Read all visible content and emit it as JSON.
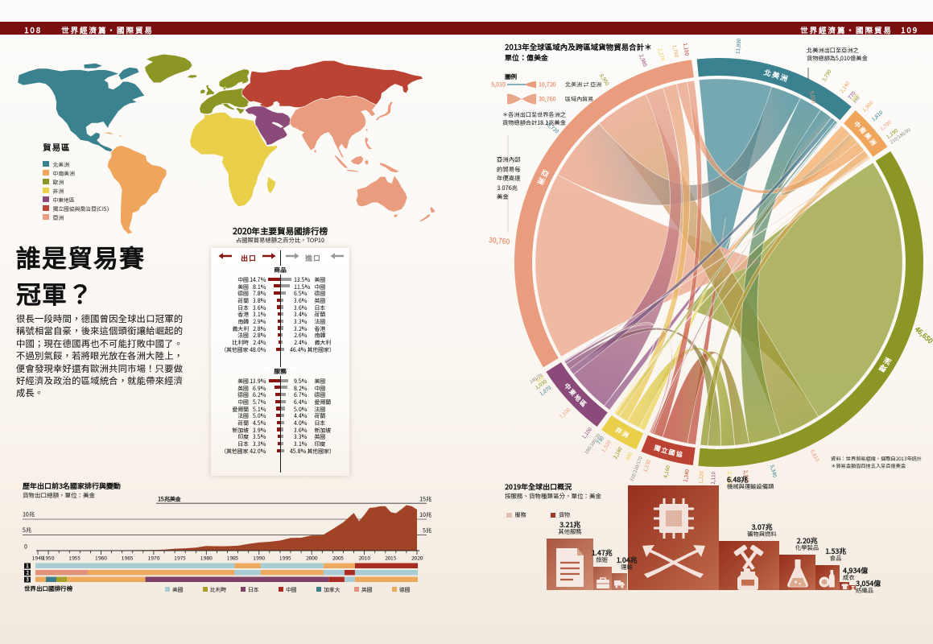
{
  "page": {
    "left_page_number": "108",
    "right_page_number": "109",
    "chapter": "世界經濟篇·國際貿易",
    "background": "#FBF7F2",
    "header_color": "#7A0E10"
  },
  "map": {
    "legend_title": "貿易區",
    "regions": [
      {
        "key": "NA",
        "label": "北美洲",
        "color": "#3A8290"
      },
      {
        "key": "SCA",
        "label": "中南美洲",
        "color": "#F0A55C"
      },
      {
        "key": "EU",
        "label": "歐洲",
        "color": "#8C9624"
      },
      {
        "key": "AF",
        "label": "非洲",
        "color": "#E9CF4A"
      },
      {
        "key": "ME",
        "label": "中東地區",
        "color": "#8C4A7B"
      },
      {
        "key": "CIS",
        "label": "獨立國協與喬治亞(CIS)",
        "color": "#BB4333"
      },
      {
        "key": "AS",
        "label": "亞洲",
        "color": "#E99C7E"
      }
    ]
  },
  "headline": {
    "line1": "誰是貿易賽",
    "line2": "冠軍？",
    "body": "很長一段時間，德國曾因全球出口冠軍的稱號相當自豪，後來這個頭銜讓給崛起的中國；現在德國再也不可能打敗中國了。不過別氣餒，若將眼光放在各洲大陸上，便會發現幸好還有歐洲共同市場！只要做好經濟及政治的區域統合，就能帶來經濟成長。"
  },
  "ranking_table": {
    "title": "2020年主要貿易國排行榜",
    "subtitle": "占國際貿易總額之百分比，TOP10",
    "export_header": "出口",
    "import_header": "進口",
    "sections": [
      {
        "label": "商品",
        "rows": [
          {
            "exp_country": "中國",
            "exp_pct": "14.7%",
            "exp_val": 14.7,
            "imp_val": 13.5,
            "imp_pct": "13.5%",
            "imp_country": "美國"
          },
          {
            "exp_country": "美國",
            "exp_pct": "8.1%",
            "exp_val": 8.1,
            "imp_val": 11.5,
            "imp_pct": "11.5%",
            "imp_country": "中國"
          },
          {
            "exp_country": "德國",
            "exp_pct": "7.8%",
            "exp_val": 7.8,
            "imp_val": 6.5,
            "imp_pct": "6.5%",
            "imp_country": "德國"
          },
          {
            "exp_country": "荷蘭",
            "exp_pct": "3.8%",
            "exp_val": 3.8,
            "imp_val": 3.6,
            "imp_pct": "3.6%",
            "imp_country": "英國"
          },
          {
            "exp_country": "日本",
            "exp_pct": "3.6%",
            "exp_val": 3.6,
            "imp_val": 3.6,
            "imp_pct": "3.6%",
            "imp_country": "日本"
          },
          {
            "exp_country": "香港",
            "exp_pct": "3.1%",
            "exp_val": 3.1,
            "imp_val": 3.4,
            "imp_pct": "3.4%",
            "imp_country": "荷蘭"
          },
          {
            "exp_country": "南韓",
            "exp_pct": "2.9%",
            "exp_val": 2.9,
            "imp_val": 3.3,
            "imp_pct": "3.3%",
            "imp_country": "法國"
          },
          {
            "exp_country": "義大利",
            "exp_pct": "2.8%",
            "exp_val": 2.8,
            "imp_val": 3.2,
            "imp_pct": "3.2%",
            "imp_country": "香港"
          },
          {
            "exp_country": "法國",
            "exp_pct": "2.8%",
            "exp_val": 2.8,
            "imp_val": 2.6,
            "imp_pct": "2.6%",
            "imp_country": "南韓"
          },
          {
            "exp_country": "比利時",
            "exp_pct": "2.4%",
            "exp_val": 2.4,
            "imp_val": 2.4,
            "imp_pct": "2.4%",
            "imp_country": "義大利"
          }
        ],
        "others_exp": "（其他國家 48.0%",
        "others_exp_val": 4.8,
        "others_imp_val": 4.6,
        "others_imp": "46.4% 其他國家）"
      },
      {
        "label": "服務",
        "rows": [
          {
            "exp_country": "美國",
            "exp_pct": "13.9%",
            "exp_val": 13.9,
            "imp_val": 9.5,
            "imp_pct": "9.5%",
            "imp_country": "美國"
          },
          {
            "exp_country": "英國",
            "exp_pct": "6.9%",
            "exp_val": 6.9,
            "imp_val": 8.2,
            "imp_pct": "8.2%",
            "imp_country": "中國"
          },
          {
            "exp_country": "德國",
            "exp_pct": "6.2%",
            "exp_val": 6.2,
            "imp_val": 6.7,
            "imp_pct": "6.7%",
            "imp_country": "德國"
          },
          {
            "exp_country": "中國",
            "exp_pct": "5.7%",
            "exp_val": 5.7,
            "imp_val": 6.4,
            "imp_pct": "6.4%",
            "imp_country": "愛爾蘭"
          },
          {
            "exp_country": "愛爾蘭",
            "exp_pct": "5.1%",
            "exp_val": 5.1,
            "imp_val": 5.0,
            "imp_pct": "5.0%",
            "imp_country": "法國"
          },
          {
            "exp_country": "法國",
            "exp_pct": "5.0%",
            "exp_val": 5.0,
            "imp_val": 4.4,
            "imp_pct": "4.4%",
            "imp_country": "荷蘭"
          },
          {
            "exp_country": "荷蘭",
            "exp_pct": "4.5%",
            "exp_val": 4.5,
            "imp_val": 4.0,
            "imp_pct": "4.0%",
            "imp_country": "日本"
          },
          {
            "exp_country": "新加坡",
            "exp_pct": "3.9%",
            "exp_val": 3.9,
            "imp_val": 3.6,
            "imp_pct": "3.6%",
            "imp_country": "新加坡"
          },
          {
            "exp_country": "印度",
            "exp_pct": "3.5%",
            "exp_val": 3.5,
            "imp_val": 3.3,
            "imp_pct": "3.3%",
            "imp_country": "英國"
          },
          {
            "exp_country": "日本",
            "exp_pct": "3.3%",
            "exp_val": 3.3,
            "imp_val": 3.1,
            "imp_pct": "3.1%",
            "imp_country": "印度"
          }
        ],
        "others_exp": "（其他國家 42.0%",
        "others_exp_val": 4.2,
        "others_imp_val": 4.6,
        "others_imp": "45.8% 其他國家）"
      }
    ]
  },
  "chord": {
    "title": "2013年全球區域內及跨區域貨物貿易合計＊",
    "unit": "單位：億美金",
    "legend_title": "圖例",
    "legend_flow_left": "5,010",
    "legend_flow_right": "10,720",
    "legend_flow_label": "北美洲 ⇄ 亞洲",
    "legend_intra_value": "30,760",
    "legend_intra_label": "區域內貿易",
    "note_line1": "＊各洲出口至世界各洲之",
    "note_line2": "貨物總額合計18.1兆美金",
    "asia_note_lines": [
      "亞洲內部",
      "的貿易每",
      "年便高達",
      "3.076兆",
      "美金"
    ],
    "na_annotation_line1": "北美洲出口至亞洲之",
    "na_annotation_line2": "貨物總額為5,010億美金",
    "source_line1": "資料：世界貿易組織，擷取自2013年統計",
    "source_line2": "＊貿易金額皆四捨五入至百億美金",
    "arc_labels": {
      "NA": "北美洲",
      "SCA": "中南美洲",
      "EU": "歐洲",
      "CIS": "獨立國協",
      "AF": "非洲",
      "ME": "中東地區",
      "AS": "亞洲"
    },
    "region_order": [
      "NA",
      "SCA",
      "EU",
      "CIS",
      "AF",
      "ME",
      "AS"
    ],
    "flows_unit": "億美金",
    "flows": {
      "NA": {
        "NA": 11890,
        "SCA": 2140,
        "EU": 3790,
        "CIS": 160,
        "AF": 390,
        "ME": 770,
        "AS": 5010
      },
      "SCA": {
        "NA": 1810,
        "SCA": 1900,
        "EU": 1190,
        "CIS": 90,
        "AF": 210,
        "ME": 180,
        "AS": 1700
      },
      "EU": {
        "NA": 5340,
        "SCA": 1220,
        "EU": 46650,
        "CIS": 2340,
        "AF": 2220,
        "ME": 2110,
        "AS": 6810
      },
      "CIS": {
        "NA": 310,
        "SCA": 90,
        "EU": 4160,
        "CIS": 1340,
        "AF": 170,
        "ME": 210,
        "AS": 1530
      },
      "AF": {
        "NA": 730,
        "SCA": 190,
        "EU": 2180,
        "CIS": 20,
        "AF": 980,
        "ME": 180,
        "AS": 1520
      },
      "ME": {
        "NA": 1070,
        "SCA": 140,
        "EU": 1030,
        "CIS": 70,
        "AF": 430,
        "ME": 1100,
        "AS": 7100
      },
      "AS": {
        "NA": 10720,
        "SCA": 1760,
        "EU": 8950,
        "CIS": 1180,
        "AF": 2270,
        "ME": 2980,
        "AS": 30760
      }
    }
  },
  "area_chart": {
    "title": "歷年出口前3名國家排行與變動",
    "subtitle": "貨物出口總額，單位：美金",
    "top_gridline_label": "15兆美金",
    "left_labels": [
      "10兆",
      "5兆",
      "0"
    ],
    "right_labels": [
      "15兆",
      "10兆",
      "5兆"
    ],
    "x_labels": [
      1948,
      1950,
      1955,
      1960,
      1965,
      1970,
      1975,
      1980,
      1985,
      1990,
      1995,
      2000,
      2005,
      2010,
      2015,
      2020
    ],
    "chart_data": {
      "type": "area",
      "ylabel": "兆美金",
      "ylim": [
        0,
        15
      ],
      "fill_color": "#A04327",
      "x": [
        1948,
        1950,
        1952,
        1955,
        1958,
        1960,
        1962,
        1964,
        1966,
        1968,
        1970,
        1972,
        1974,
        1976,
        1978,
        1980,
        1982,
        1984,
        1986,
        1988,
        1990,
        1992,
        1994,
        1996,
        1998,
        2000,
        2002,
        2004,
        2006,
        2008,
        2009,
        2010,
        2011,
        2012,
        2013,
        2014,
        2015,
        2016,
        2017,
        2018,
        2019,
        2020
      ],
      "values": [
        0.06,
        0.06,
        0.08,
        0.09,
        0.11,
        0.13,
        0.14,
        0.17,
        0.2,
        0.24,
        0.32,
        0.42,
        0.84,
        1.0,
        1.3,
        2.0,
        1.9,
        1.9,
        2.1,
        2.9,
        3.5,
        3.8,
        4.3,
        5.4,
        5.5,
        6.5,
        6.5,
        9.2,
        12.1,
        16.1,
        12.6,
        15.3,
        18.3,
        18.5,
        19.0,
        19.0,
        16.5,
        16.0,
        17.7,
        19.5,
        19.0,
        17.6
      ]
    }
  },
  "rank_bars": {
    "legend_label": "世界出口國排行榜",
    "row_numbers": [
      "1",
      "2",
      "3"
    ],
    "countries": [
      {
        "name": "美國",
        "color": "#A9CBD4"
      },
      {
        "name": "比利時",
        "color": "#A99F26"
      },
      {
        "name": "日本",
        "color": "#7D4066"
      },
      {
        "name": "中國",
        "color": "#A72C21"
      },
      {
        "name": "加拿大",
        "color": "#3E7D8A"
      },
      {
        "name": "英國",
        "color": "#E2917B"
      },
      {
        "name": "德國",
        "color": "#EBAA5E"
      }
    ],
    "rows": [
      [
        [
          "美國",
          1948,
          1986
        ],
        [
          "德國",
          1986,
          1991
        ],
        [
          "美國",
          1991,
          2003
        ],
        [
          "德國",
          2003,
          2009
        ],
        [
          "中國",
          2009,
          2021
        ]
      ],
      [
        [
          "英國",
          1948,
          1958
        ],
        [
          "德國",
          1958,
          1986
        ],
        [
          "美國",
          1986,
          1991
        ],
        [
          "德國",
          1991,
          2003
        ],
        [
          "美國",
          2003,
          2007
        ],
        [
          "中國",
          2007,
          2009
        ],
        [
          "美國",
          2009,
          2021
        ]
      ],
      [
        [
          "德國",
          1948,
          1950
        ],
        [
          "加拿大",
          1950,
          1952
        ],
        [
          "比利時",
          1952,
          1954
        ],
        [
          "德國",
          1954,
          1969
        ],
        [
          "日本",
          1969,
          2004
        ],
        [
          "中國",
          2004,
          2007
        ],
        [
          "美國",
          2007,
          2009
        ],
        [
          "德國",
          2009,
          2021
        ]
      ]
    ]
  },
  "export_bars": {
    "title": "2019年全球出口概況",
    "subtitle": "按服務、貨物種類區分，單位：美金",
    "legend": [
      {
        "label": "服務",
        "color": "#E5BFB2"
      },
      {
        "label": "貨物",
        "color": "#9C3D27"
      }
    ],
    "chart_data": {
      "type": "bar",
      "unit": "兆美金",
      "categories": [
        "其他服務",
        "旅遊",
        "運輸",
        "機械與運輸設備類",
        "礦物與燃料",
        "化學製品",
        "食品",
        "成衣",
        "紡織品"
      ],
      "values": [
        3.21,
        1.47,
        1.04,
        6.48,
        3.07,
        2.2,
        1.53,
        0.4934,
        0.3054
      ],
      "kinds": [
        "service",
        "service",
        "service",
        "goods",
        "goods",
        "goods",
        "goods",
        "goods",
        "goods"
      ],
      "value_labels": [
        "3.21兆",
        "1.47兆",
        "1.04兆",
        "6.48兆",
        "3.07兆",
        "2.20兆",
        "1.53兆",
        "4,934億",
        "3,054億"
      ],
      "icons": [
        "document-icon",
        "suitcase-icon",
        "truck-icon",
        "chip-arrows-icon",
        "mining-icon",
        "flask-icon",
        "food-icon",
        "shirt-icon",
        "spool-icon"
      ]
    }
  }
}
